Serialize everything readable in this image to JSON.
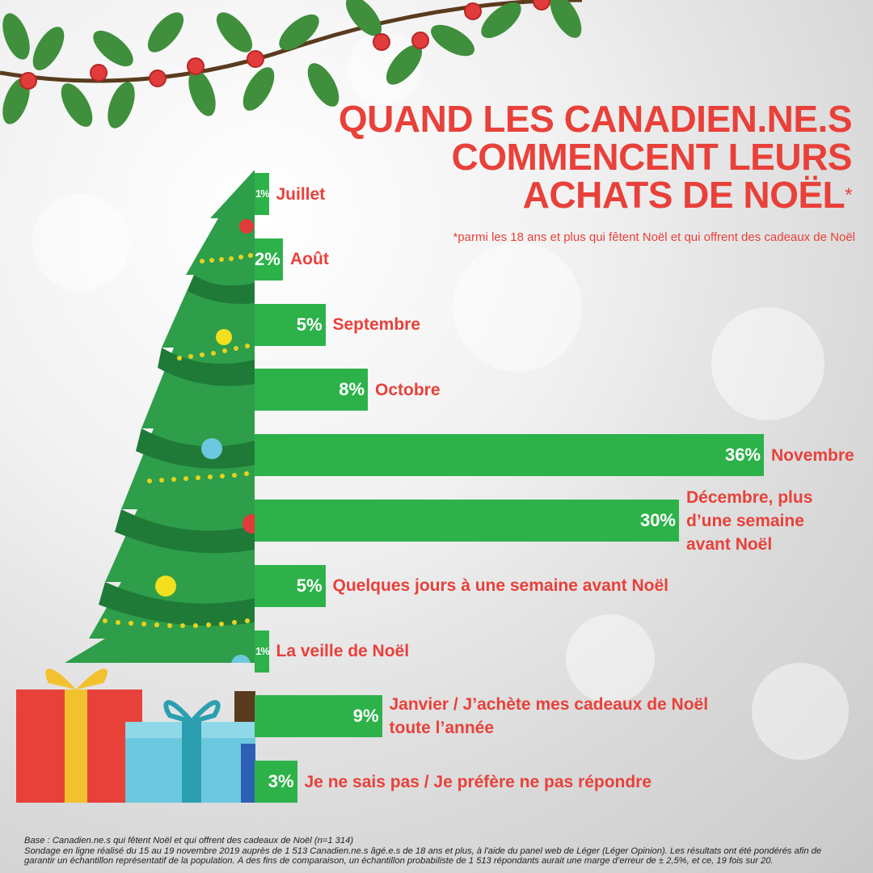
{
  "title_lines": [
    "QUAND LES CANADIEN.NE.S",
    "COMMENCENT LEURS",
    "ACHATS DE NOËL"
  ],
  "title_mark": "*",
  "subtitle": "*parmi les 18 ans et plus qui fêtent Noël et qui offrent des cadeaux de Noël",
  "footer": {
    "base": "Base : Canadien.ne.s qui fêtent Noël et qui offrent des cadeaux de Noël (n=1 314)",
    "method_1": "Sondage en ligne réalisé du 15 au 19 novembre 2019 auprès de 1 513 Canadien.ne.s âgé.e.s de 18 ans et plus, à l'aide du panel web de Léger (Léger Opinion). Les résultats ont été pondérés afin de",
    "method_2": "garantir un échantillon représentatif de la population. À des fins de comparaison, un échantillon probabiliste de 1 513 répondants aurait une marge d’erreur de ± 2,5%, et ce, 19 fois sur 20."
  },
  "colors": {
    "accent": "#e8413a",
    "bar": "#2db24a",
    "tree": "#2e9e4a",
    "tree_dark": "#1f7a38"
  },
  "chart_data": {
    "type": "bar",
    "orientation": "horizontal",
    "unit": "%",
    "categories": [
      [
        "Juillet"
      ],
      [
        "Août"
      ],
      [
        "Septembre"
      ],
      [
        "Octobre"
      ],
      [
        "Novembre"
      ],
      [
        "Décembre, plus",
        "d’une semaine",
        "avant Noël"
      ],
      [
        "Quelques jours à une semaine avant Noël"
      ],
      [
        "La veille de Noël"
      ],
      [
        "Janvier / J’achète mes cadeaux de Noël",
        "toute l’année"
      ],
      [
        "Je ne sais pas / Je préfère ne pas répondre"
      ]
    ],
    "values": [
      1,
      2,
      5,
      8,
      36,
      30,
      5,
      1,
      9,
      3
    ],
    "labels": [
      "1%",
      "2%",
      "5%",
      "8%",
      "36%",
      "30%",
      "5%",
      "1%",
      "9%",
      "3%"
    ]
  }
}
